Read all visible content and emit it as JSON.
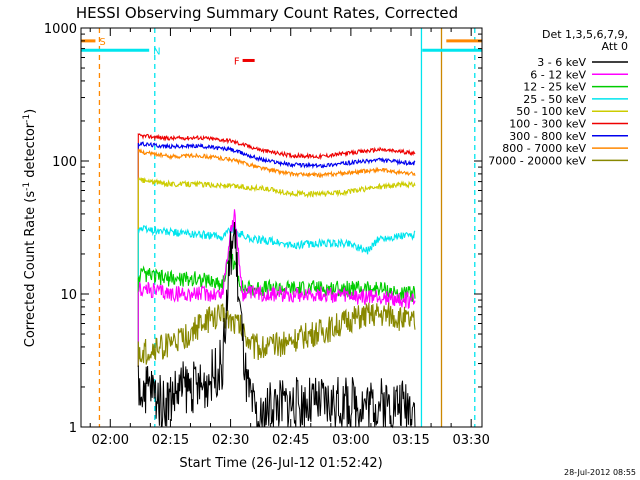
{
  "chart_data": {
    "type": "line",
    "title": "HESSI Observing Summary Count Rates, Corrected",
    "xlabel": "Start Time (26-Jul-12 01:52:42)",
    "ylabel_main": "Corrected Count Rate (s",
    "ylabel_sup1": "-1",
    "ylabel_mid": " detector",
    "ylabel_sup2": "-1",
    "ylabel_end": ")",
    "yscale": "log",
    "ylim": [
      1,
      1000
    ],
    "xlim_min": [
      112.7,
      212.7
    ],
    "yticks": [
      {
        "value": 1,
        "label": "1"
      },
      {
        "value": 10,
        "label": "10"
      },
      {
        "value": 100,
        "label": "100"
      },
      {
        "value": 1000,
        "label": "1000"
      }
    ],
    "xticks": [
      {
        "min": 120,
        "label": "02:00"
      },
      {
        "min": 135,
        "label": "02:15"
      },
      {
        "min": 150,
        "label": "02:30"
      },
      {
        "min": 165,
        "label": "02:45"
      },
      {
        "min": 180,
        "label": "03:00"
      },
      {
        "min": 195,
        "label": "03:15"
      },
      {
        "min": 210,
        "label": "03:30"
      }
    ],
    "legend": {
      "header": "Det 1,3,5,6,7,9,",
      "attenuator": "Att 0",
      "placement": "right",
      "entries": [
        {
          "label": "3 - 6 keV",
          "color": "#000000"
        },
        {
          "label": "6 - 12 keV",
          "color": "#ff00ff"
        },
        {
          "label": "12 - 25 keV",
          "color": "#00cc00"
        },
        {
          "label": "25 - 50 keV",
          "color": "#00e5ee"
        },
        {
          "label": "50 - 100 keV",
          "color": "#cccc00"
        },
        {
          "label": "100 - 300 keV",
          "color": "#ee0000"
        },
        {
          "label": "300 - 800 keV",
          "color": "#0000ee"
        },
        {
          "label": "800 - 7000 keV",
          "color": "#ff8800"
        },
        {
          "label": "7000 - 20000 keV",
          "color": "#888800"
        }
      ]
    },
    "flags": [
      {
        "label": "S",
        "color": "#ff8800",
        "start_min": 112.7,
        "end_min": 116.3,
        "y": 800
      },
      {
        "label": "N",
        "color": "#00e5ee",
        "start_min": 112.7,
        "end_min": 129.7,
        "y": 680
      },
      {
        "label": "F",
        "color": "#ee0000",
        "start_min": 153.0,
        "end_min": 156.0,
        "y": 570
      },
      {
        "label": "",
        "color": "#00e5ee",
        "start_min": 197.8,
        "end_min": 212.7,
        "y": 680
      },
      {
        "label": "",
        "color": "#ff8800",
        "start_min": 203.8,
        "end_min": 212.7,
        "y": 800
      }
    ],
    "markers": [
      {
        "min": 117.3,
        "color": "#ff8800",
        "style": "dashed"
      },
      {
        "min": 131.1,
        "color": "#00e5ee",
        "style": "dashed"
      },
      {
        "min": 197.6,
        "color": "#00e5ee",
        "style": "solid"
      },
      {
        "min": 202.6,
        "color": "#cc8800",
        "style": "solid"
      },
      {
        "min": 210.9,
        "color": "#00e5ee",
        "style": "dashed"
      }
    ],
    "data_window_min": [
      127.0,
      196.0
    ],
    "series": [
      {
        "color": "#ee0000",
        "min": [
          127,
          135,
          142,
          150,
          158,
          165,
          172,
          180,
          187,
          192,
          196
        ],
        "values": [
          155,
          148,
          150,
          142,
          120,
          110,
          108,
          115,
          122,
          118,
          115
        ]
      },
      {
        "color": "#0000ee",
        "min": [
          127,
          135,
          142,
          150,
          158,
          165,
          172,
          180,
          187,
          192,
          196
        ],
        "values": [
          135,
          128,
          130,
          122,
          102,
          94,
          92,
          97,
          102,
          98,
          96
        ]
      },
      {
        "color": "#ff8800",
        "min": [
          127,
          135,
          142,
          150,
          158,
          165,
          172,
          180,
          187,
          192,
          196
        ],
        "values": [
          118,
          108,
          110,
          103,
          88,
          80,
          78,
          82,
          86,
          82,
          80
        ]
      },
      {
        "color": "#cccc00",
        "min": [
          127,
          135,
          142,
          150,
          158,
          165,
          172,
          180,
          187,
          192,
          196
        ],
        "values": [
          72,
          67,
          67,
          65,
          62,
          57,
          56,
          59,
          64,
          66,
          67
        ]
      },
      {
        "color": "#00e5ee",
        "min": [
          127,
          135,
          142,
          148,
          150,
          155,
          160,
          165,
          172,
          180,
          184,
          187,
          192,
          196
        ],
        "values": [
          31,
          29,
          28,
          27,
          31,
          26,
          25,
          23,
          24,
          24,
          21,
          26,
          27,
          28
        ]
      },
      {
        "color": "#00cc00",
        "min": [
          127,
          135,
          142,
          148,
          150,
          153,
          158,
          165,
          172,
          180,
          187,
          192,
          196
        ],
        "values": [
          14,
          13,
          13,
          12,
          20,
          11,
          11,
          11,
          11,
          11,
          11,
          10,
          10
        ]
      },
      {
        "color": "#ff00ff",
        "min": [
          127,
          135,
          142,
          148,
          150,
          151,
          153,
          158,
          165,
          172,
          180,
          187,
          192,
          196
        ],
        "values": [
          11,
          10,
          10,
          10,
          30,
          38,
          10,
          10,
          10,
          10,
          9.5,
          9.5,
          9,
          9
        ]
      },
      {
        "color": "#888800",
        "min": [
          127,
          133,
          138,
          143,
          148,
          152,
          156,
          160,
          165,
          170,
          175,
          180,
          185,
          190,
          196
        ],
        "values": [
          3.5,
          4,
          4.5,
          6,
          7,
          6,
          4,
          4,
          4.5,
          5,
          5.5,
          6.5,
          7,
          7,
          6
        ]
      },
      {
        "color": "#000000",
        "min": [
          127,
          130,
          133,
          138,
          143,
          148,
          150,
          151,
          152,
          154,
          157,
          160,
          165,
          175,
          185,
          196
        ],
        "values": [
          2,
          2,
          1.5,
          2,
          2,
          3,
          20,
          30,
          10,
          2,
          1,
          1.5,
          1.5,
          1.5,
          1.5,
          1.5
        ]
      }
    ]
  },
  "timestamp": "28-Jul-2012 08:55"
}
